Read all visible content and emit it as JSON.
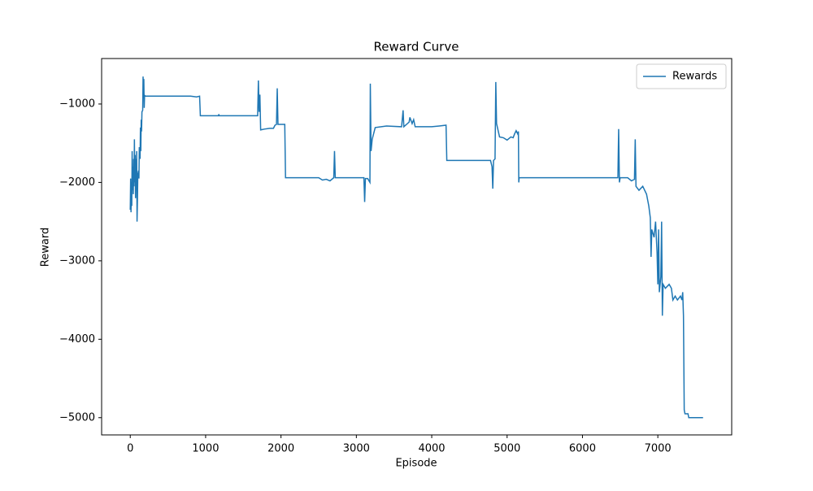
{
  "chart_data": {
    "type": "line",
    "title": "Reward Curve",
    "x_label": "Episode",
    "y_label": "Reward",
    "x": [
      0,
      5,
      10,
      15,
      20,
      25,
      30,
      35,
      40,
      45,
      50,
      55,
      60,
      65,
      70,
      75,
      80,
      85,
      90,
      95,
      100,
      110,
      115,
      120,
      130,
      135,
      140,
      145,
      150,
      155,
      165,
      170,
      175,
      180,
      185,
      190,
      200,
      500,
      800,
      880,
      920,
      930,
      1170,
      1175,
      1180,
      1690,
      1700,
      1710,
      1720,
      1730,
      1780,
      1850,
      1900,
      1920,
      1940,
      1950,
      1960,
      2050,
      2060,
      2500,
      2550,
      2600,
      2650,
      2700,
      2710,
      2720,
      3100,
      3110,
      3120,
      3150,
      3180,
      3185,
      3195,
      3210,
      3250,
      3400,
      3600,
      3620,
      3630,
      3700,
      3710,
      3740,
      3760,
      3780,
      4000,
      4100,
      4190,
      4200,
      4500,
      4780,
      4800,
      4810,
      4820,
      4840,
      4850,
      4860,
      4900,
      4950,
      5000,
      5050,
      5080,
      5100,
      5120,
      5140,
      5150,
      5155,
      5160,
      6470,
      6480,
      6490,
      6500,
      6600,
      6650,
      6690,
      6700,
      6710,
      6750,
      6800,
      6850,
      6880,
      6900,
      6910,
      6920,
      6950,
      6970,
      6990,
      7000,
      7010,
      7020,
      7040,
      7050,
      7060,
      7070,
      7100,
      7150,
      7180,
      7200,
      7230,
      7260,
      7300,
      7320,
      7330,
      7340,
      7350,
      7360,
      7400,
      7410,
      7600
    ],
    "series": [
      {
        "name": "Rewards",
        "color": "#1f77b4",
        "values": [
          -2350,
          -1950,
          -2380,
          -2000,
          -2300,
          -1600,
          -2100,
          -1800,
          -2150,
          -1700,
          -2050,
          -1450,
          -2000,
          -1650,
          -2200,
          -1700,
          -2100,
          -1600,
          -2500,
          -2250,
          -1900,
          -1850,
          -1950,
          -1550,
          -1700,
          -1300,
          -1600,
          -1200,
          -1350,
          -1100,
          -1080,
          -650,
          -900,
          -680,
          -1050,
          -890,
          -900,
          -900,
          -900,
          -910,
          -900,
          -1150,
          -1150,
          -1130,
          -1150,
          -1150,
          -700,
          -1100,
          -880,
          -1330,
          -1320,
          -1310,
          -1310,
          -1270,
          -1260,
          -800,
          -1260,
          -1260,
          -1940,
          -1940,
          -1970,
          -1960,
          -1980,
          -1940,
          -1600,
          -1940,
          -1940,
          -2250,
          -1950,
          -1950,
          -2000,
          -740,
          -1600,
          -1450,
          -1300,
          -1280,
          -1290,
          -1080,
          -1290,
          -1230,
          -1170,
          -1250,
          -1200,
          -1290,
          -1290,
          -1280,
          -1270,
          -1720,
          -1720,
          -1720,
          -1800,
          -2080,
          -1720,
          -1700,
          -720,
          -1250,
          -1420,
          -1430,
          -1460,
          -1420,
          -1430,
          -1380,
          -1340,
          -1380,
          -1350,
          -2000,
          -1940,
          -1940,
          -1320,
          -2000,
          -1940,
          -1940,
          -1980,
          -1960,
          -1450,
          -2050,
          -2100,
          -2050,
          -2150,
          -2300,
          -2450,
          -2950,
          -2600,
          -2700,
          -2500,
          -2900,
          -3300,
          -2600,
          -3400,
          -3200,
          -2500,
          -3700,
          -3300,
          -3350,
          -3300,
          -3350,
          -3500,
          -3450,
          -3500,
          -3450,
          -3500,
          -3400,
          -3700,
          -4900,
          -4950,
          -4950,
          -5000,
          -5000
        ]
      }
    ],
    "xlim": [
      -380,
      7980
    ],
    "xticks": [
      0,
      1000,
      2000,
      3000,
      4000,
      5000,
      6000,
      7000
    ],
    "ylim": [
      -5220,
      -420
    ],
    "yticks": [
      {
        "value": -5000,
        "label": "−5000"
      },
      {
        "value": -4000,
        "label": "−4000"
      },
      {
        "value": -3000,
        "label": "−3000"
      },
      {
        "value": -2000,
        "label": "−2000"
      },
      {
        "value": -1000,
        "label": "−1000"
      }
    ],
    "legend": "upper right"
  }
}
